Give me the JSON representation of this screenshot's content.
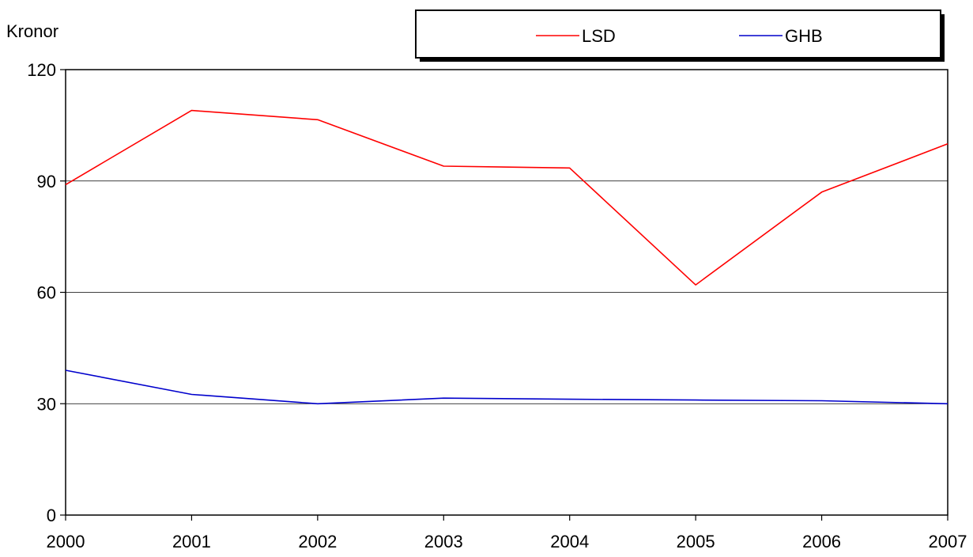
{
  "chart_data": {
    "type": "line",
    "title": "",
    "xlabel": "",
    "ylabel": "Kronor",
    "x": [
      "2000",
      "2001",
      "2002",
      "2003",
      "2004",
      "2005",
      "2006",
      "2007"
    ],
    "ylim": [
      0,
      120
    ],
    "yticks": [
      "0",
      "30",
      "60",
      "90",
      "120"
    ],
    "grid": true,
    "legend_position": "top-right",
    "series": [
      {
        "name": "LSD",
        "color": "#ff0000",
        "values": [
          89,
          109,
          106.5,
          94,
          93.5,
          62,
          87,
          100
        ]
      },
      {
        "name": "GHB",
        "color": "#0000cc",
        "values": [
          39,
          32.5,
          30,
          31.5,
          31.2,
          31,
          30.8,
          30
        ]
      }
    ]
  }
}
